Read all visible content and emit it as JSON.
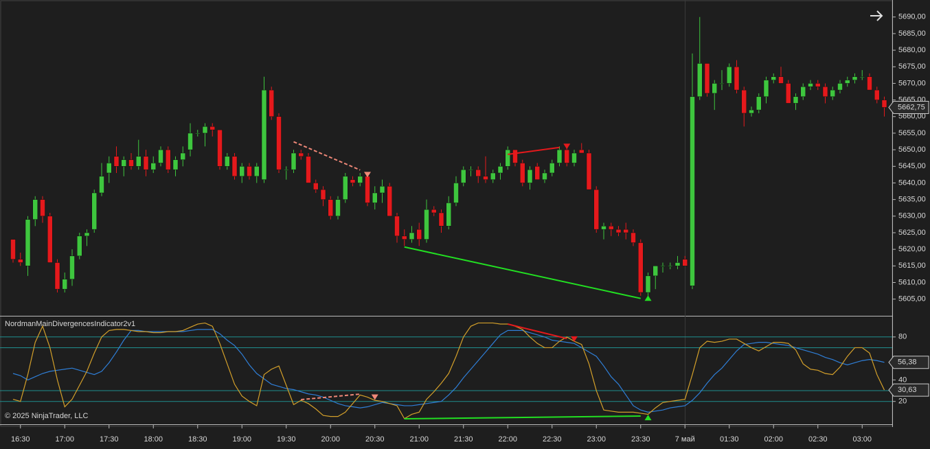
{
  "chart_data": {
    "type": "candlestick",
    "categories": [
      null,
      "16:30",
      null,
      null,
      null,
      null,
      null,
      "17:00",
      null,
      null,
      null,
      null,
      null,
      "17:30",
      null,
      null,
      null,
      null,
      null,
      "18:00",
      null,
      null,
      null,
      null,
      null,
      "18:30",
      null,
      null,
      null,
      null,
      null,
      "19:00",
      null,
      null,
      null,
      null,
      null,
      "19:30",
      null,
      null,
      null,
      null,
      null,
      "20:00",
      null,
      null,
      null,
      null,
      null,
      "20:30",
      null,
      null,
      null,
      null,
      null,
      "21:00",
      null,
      null,
      null,
      null,
      null,
      "21:30",
      null,
      null,
      null,
      null,
      null,
      "22:00",
      null,
      null,
      null,
      null,
      null,
      "22:30",
      null,
      null,
      null,
      null,
      null,
      "23:00",
      null,
      null,
      null,
      null,
      null,
      "23:30",
      null,
      null,
      null,
      null,
      null,
      "7 май",
      null,
      null,
      null,
      null,
      null,
      "01:30",
      null,
      null,
      null,
      null,
      null,
      "02:00",
      null,
      null,
      null,
      null,
      null,
      "02:30",
      null,
      null,
      null,
      null,
      null,
      "03:00",
      null,
      null,
      null
    ],
    "candles": [
      [
        5623,
        5623,
        5616,
        5617
      ],
      [
        5617,
        5619,
        5615,
        5616
      ],
      [
        5615,
        5630,
        5612,
        5629
      ],
      [
        5629,
        5636,
        5627,
        5635
      ],
      [
        5635,
        5636,
        5628,
        5630
      ],
      [
        5630,
        5631,
        5616,
        5616
      ],
      [
        5616,
        5617,
        5607,
        5608
      ],
      [
        5608,
        5613,
        5607,
        5611
      ],
      [
        5611,
        5620,
        5609,
        5618
      ],
      [
        5618,
        5625,
        5617,
        5624
      ],
      [
        5624,
        5626,
        5621,
        5625
      ],
      [
        5626,
        5638,
        5625,
        5637
      ],
      [
        5637,
        5646,
        5636,
        5642
      ],
      [
        5643,
        5648,
        5640,
        5646
      ],
      [
        5648,
        5651,
        5643,
        5645
      ],
      [
        5645,
        5648,
        5642,
        5647
      ],
      [
        5647,
        5649,
        5644,
        5645
      ],
      [
        5645,
        5653,
        5644,
        5648
      ],
      [
        5648,
        5650,
        5642,
        5644
      ],
      [
        5644,
        5648,
        5643,
        5646
      ],
      [
        5646,
        5651,
        5645,
        5650
      ],
      [
        5650,
        5651,
        5643,
        5644
      ],
      [
        5644,
        5648,
        5642,
        5647
      ],
      [
        5647,
        5651,
        5645,
        5649
      ],
      [
        5650,
        5658,
        5648,
        5655
      ],
      [
        5655,
        5656,
        5654,
        5655
      ],
      [
        5655,
        5658,
        5651,
        5657
      ],
      [
        5657,
        5658,
        5654,
        5656
      ],
      [
        5656,
        5656,
        5644,
        5645
      ],
      [
        5645,
        5649,
        5644,
        5648
      ],
      [
        5648,
        5649,
        5641,
        5642
      ],
      [
        5642,
        5646,
        5640,
        5645
      ],
      [
        5645,
        5646,
        5641,
        5642
      ],
      [
        5642,
        5646,
        5640,
        5645
      ],
      [
        5641,
        5672,
        5640,
        5668
      ],
      [
        5668,
        5669,
        5659,
        5660
      ],
      [
        5660,
        5661,
        5643,
        5644
      ],
      [
        5644,
        5645,
        5641,
        5644
      ],
      [
        5644,
        5650,
        5643,
        5649
      ],
      [
        5649,
        5650,
        5647,
        5648
      ],
      [
        5648,
        5649,
        5640,
        5640
      ],
      [
        5640,
        5641,
        5637,
        5638
      ],
      [
        5638,
        5639,
        5633,
        5635
      ],
      [
        5635,
        5636,
        5629,
        5630
      ],
      [
        5630,
        5636,
        5629,
        5635
      ],
      [
        5635,
        5643,
        5634,
        5642
      ],
      [
        5641,
        5642,
        5639,
        5640
      ],
      [
        5640,
        5643,
        5639,
        5642
      ],
      [
        5642,
        5643,
        5633,
        5634
      ],
      [
        5634,
        5639,
        5632,
        5637
      ],
      [
        5637,
        5641,
        5634,
        5639
      ],
      [
        5639,
        5640,
        5630,
        5630
      ],
      [
        5630,
        5631,
        5622,
        5624
      ],
      [
        5624,
        5626,
        5621,
        5623
      ],
      [
        5623,
        5627,
        5622,
        5625
      ],
      [
        5626,
        5628,
        5621,
        5623
      ],
      [
        5623,
        5635,
        5622,
        5632
      ],
      [
        5632,
        5633,
        5630,
        5631
      ],
      [
        5631,
        5632,
        5625,
        5627
      ],
      [
        5627,
        5636,
        5626,
        5634
      ],
      [
        5634,
        5642,
        5633,
        5640
      ],
      [
        5640,
        5645,
        5639,
        5644
      ],
      [
        5644,
        5645,
        5642,
        5644
      ],
      [
        5644,
        5645,
        5640,
        5642
      ],
      [
        5642,
        5648,
        5640,
        5641
      ],
      [
        5641,
        5644,
        5640,
        5643
      ],
      [
        5643,
        5646,
        5641,
        5645
      ],
      [
        5645,
        5651,
        5644,
        5650
      ],
      [
        5650,
        5650,
        5645,
        5646
      ],
      [
        5646,
        5647,
        5639,
        5640
      ],
      [
        5640,
        5645,
        5638,
        5644
      ],
      [
        5645,
        5646,
        5641,
        5641
      ],
      [
        5641,
        5644,
        5640,
        5643
      ],
      [
        5643,
        5647,
        5642,
        5646
      ],
      [
        5646,
        5651,
        5645,
        5650
      ],
      [
        5650,
        5651,
        5645,
        5646
      ],
      [
        5646,
        5650,
        5645,
        5649
      ],
      [
        5650,
        5652,
        5649,
        5649
      ],
      [
        5649,
        5650,
        5638,
        5638
      ],
      [
        5638,
        5639,
        5625,
        5626
      ],
      [
        5626,
        5628,
        5623,
        5627
      ],
      [
        5627,
        5628,
        5624,
        5626
      ],
      [
        5626,
        5627,
        5624,
        5625
      ],
      [
        5626,
        5628,
        5623,
        5625
      ],
      [
        5625,
        5626,
        5621,
        5622
      ],
      [
        5622,
        5623,
        5606,
        5607
      ],
      [
        5607,
        5613,
        5606,
        5612
      ],
      [
        5612,
        5615,
        5608,
        5615
      ],
      [
        5615,
        5616,
        5613,
        5615
      ],
      [
        5615,
        5616,
        5614,
        5615
      ],
      [
        5615,
        5618,
        5614,
        5616
      ],
      [
        5617,
        5618,
        5615,
        5615
      ],
      [
        5609,
        5679,
        5608,
        5666
      ],
      [
        5666,
        5690,
        5665,
        5676
      ],
      [
        5676,
        5676,
        5666,
        5667
      ],
      [
        5667,
        5671,
        5662,
        5670
      ],
      [
        5670,
        5674,
        5668,
        5670
      ],
      [
        5670,
        5676,
        5669,
        5675
      ],
      [
        5675,
        5677,
        5667,
        5668
      ],
      [
        5668,
        5669,
        5657,
        5661
      ],
      [
        5661,
        5663,
        5660,
        5662
      ],
      [
        5662,
        5667,
        5661,
        5666
      ],
      [
        5666,
        5672,
        5664,
        5671
      ],
      [
        5671,
        5673,
        5670,
        5672
      ],
      [
        5672,
        5675,
        5670,
        5670
      ],
      [
        5670,
        5671,
        5664,
        5664
      ],
      [
        5664,
        5667,
        5662,
        5666
      ],
      [
        5666,
        5670,
        5665,
        5669
      ],
      [
        5669,
        5671,
        5668,
        5670
      ],
      [
        5670,
        5671,
        5668,
        5669
      ],
      [
        5669,
        5670,
        5664,
        5666
      ],
      [
        5666,
        5669,
        5665,
        5668
      ],
      [
        5668,
        5671,
        5667,
        5670
      ],
      [
        5670,
        5672,
        5669,
        5671
      ],
      [
        5671,
        5673,
        5670,
        5672
      ],
      [
        5672,
        5674,
        5671,
        5672
      ],
      [
        5672,
        5673,
        5668,
        5668
      ],
      [
        5668,
        5669,
        5664,
        5665
      ],
      [
        5665,
        5666,
        5660,
        5662.75
      ]
    ],
    "up_color": "#3ec63e",
    "down_color": "#e5191c",
    "ylim": [
      5601,
      5694.5
    ],
    "yticks": [
      {
        "value": 5605,
        "label": "5605,00"
      },
      {
        "value": 5610,
        "label": "5610,00"
      },
      {
        "value": 5615,
        "label": "5615,00"
      },
      {
        "value": 5620,
        "label": "5620,00"
      },
      {
        "value": 5625,
        "label": "5625,00"
      },
      {
        "value": 5630,
        "label": "5630,00"
      },
      {
        "value": 5635,
        "label": "5635,00"
      },
      {
        "value": 5640,
        "label": "5640,00"
      },
      {
        "value": 5645,
        "label": "5645,00"
      },
      {
        "value": 5650,
        "label": "5650,00"
      },
      {
        "value": 5655,
        "label": "5655,00"
      },
      {
        "value": 5660,
        "label": "5660,00"
      },
      {
        "value": 5665,
        "label": "5665,00"
      },
      {
        "value": 5670,
        "label": "5670,00"
      },
      {
        "value": 5675,
        "label": "5675,00"
      },
      {
        "value": 5680,
        "label": "5680,00"
      },
      {
        "value": 5685,
        "label": "5685,00"
      },
      {
        "value": 5690,
        "label": "5690,00"
      }
    ],
    "last_price": 5662.75,
    "last_price_label": "5662,75",
    "divergences": [
      {
        "from": 38,
        "to": 47,
        "start": 5652.4,
        "end": 5643.9,
        "color": "#f08878",
        "dashed": true,
        "signal": 48,
        "signal_value": 5642.5,
        "direction": "down"
      },
      {
        "from": 67,
        "to": 74,
        "start": 5648.6,
        "end": 5650.7,
        "color": "#e5191c",
        "dashed": false,
        "signal": 75,
        "signal_value": 5651,
        "direction": "down"
      },
      {
        "from": 53,
        "to": 85,
        "start": 5620.7,
        "end": 5605.2,
        "color": "#22e022",
        "dashed": false,
        "signal": 86,
        "signal_value": 5605.3,
        "direction": "up"
      }
    ],
    "indicator": {
      "title": "NordmanMainDivergencesIndicator2v1",
      "ylim": [
        0,
        100
      ],
      "yticks": [
        20,
        40,
        80
      ],
      "levels": [
        80,
        70,
        30,
        20
      ],
      "level_color": "#1f8f8f",
      "series": [
        {
          "color": "#2f7fd8",
          "values": [
            46,
            44,
            40,
            43,
            46,
            48,
            49,
            50,
            51,
            49,
            47,
            45,
            48,
            56,
            66,
            77,
            86,
            86,
            85,
            85,
            85,
            85,
            85,
            85,
            86,
            87,
            87,
            87,
            83,
            77,
            72,
            64,
            54,
            46,
            41,
            36,
            34,
            32,
            31,
            29,
            27,
            26,
            24,
            21,
            18,
            16,
            15,
            14,
            15,
            17,
            19,
            18,
            17,
            16,
            16,
            17,
            18,
            19,
            20,
            26,
            33,
            42,
            50,
            58,
            66,
            74,
            82,
            86,
            86,
            86,
            84,
            82,
            80,
            77,
            76,
            75,
            74,
            70,
            66,
            62,
            53,
            43,
            36,
            26,
            16,
            12,
            10,
            11,
            12,
            14,
            15,
            16,
            21,
            28,
            37,
            45,
            51,
            59,
            67,
            73,
            74,
            75,
            75,
            74,
            73,
            72,
            70,
            68,
            66,
            64,
            61,
            59,
            56,
            54,
            56,
            58,
            59,
            58,
            56.38
          ],
          "value_label": "56,38"
        },
        {
          "color": "#d4a02a",
          "values": [
            22,
            20,
            45,
            75,
            90,
            70,
            40,
            15,
            22,
            35,
            48,
            65,
            80,
            86,
            87,
            87,
            86,
            85,
            85,
            84,
            84,
            85,
            85,
            86,
            89,
            92,
            93,
            90,
            74,
            55,
            36,
            25,
            20,
            16,
            45,
            50,
            53,
            35,
            17,
            21,
            18,
            13,
            7,
            6,
            6,
            10,
            18,
            26,
            24,
            21,
            20,
            18,
            16,
            4,
            8,
            10,
            22,
            29,
            37,
            46,
            62,
            80,
            90,
            93,
            93,
            93,
            92,
            92,
            90,
            87,
            80,
            74,
            70,
            70,
            76,
            80,
            76,
            73,
            55,
            30,
            12,
            11,
            10,
            10,
            10,
            9,
            8,
            14,
            19,
            20,
            21,
            22,
            45,
            70,
            76,
            75,
            76,
            78,
            78,
            74,
            70,
            67,
            71,
            75,
            75,
            74,
            68,
            55,
            50,
            49,
            46,
            45,
            52,
            62,
            70,
            70,
            65,
            45,
            30.63
          ],
          "value_label": "30,63"
        }
      ],
      "divergences": [
        {
          "from": 39,
          "to": 47,
          "start": 21.7,
          "end": 26.8,
          "color": "#f08878",
          "dashed": true,
          "signal": 49,
          "signal_value": 24,
          "direction": "down"
        },
        {
          "from": 67,
          "to": 75,
          "start": 92,
          "end": 78.5,
          "color": "#e5191c",
          "dashed": false,
          "signal": 76,
          "signal_value": 78,
          "direction": "down"
        },
        {
          "from": 53,
          "to": 85,
          "start": 3.8,
          "end": 6.4,
          "color": "#22e022",
          "dashed": false,
          "signal": 86,
          "signal_value": 5,
          "direction": "up"
        }
      ]
    },
    "copyright": "© 2025 NinjaTrader, LLC"
  }
}
